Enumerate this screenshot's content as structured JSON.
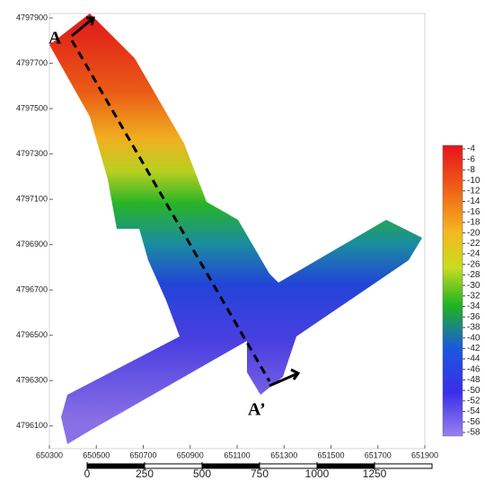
{
  "axes": {
    "xlim": [
      650300,
      651900
    ],
    "xticks": [
      650300,
      650500,
      650700,
      650900,
      651100,
      651300,
      651500,
      651700,
      651900
    ],
    "ylim": [
      4796000,
      4797920
    ],
    "yticks": [
      4796100,
      4796300,
      4796500,
      4796700,
      4796900,
      4797100,
      4797300,
      4797500,
      4797700,
      4797900
    ]
  },
  "colorbar": {
    "lim": [
      -58,
      -4
    ],
    "ticks": [
      -4,
      -6,
      -8,
      -10,
      -12,
      -14,
      -16,
      -18,
      -20,
      -22,
      -24,
      -26,
      -28,
      -30,
      -32,
      -34,
      -36,
      -38,
      -40,
      -42,
      -44,
      -46,
      -48,
      -50,
      -52,
      -54,
      -56,
      -58
    ]
  },
  "scale_bar": {
    "ticks": [
      0,
      250,
      500,
      750,
      1000,
      1250
    ]
  },
  "section": {
    "start": "A",
    "end": "A’"
  }
}
